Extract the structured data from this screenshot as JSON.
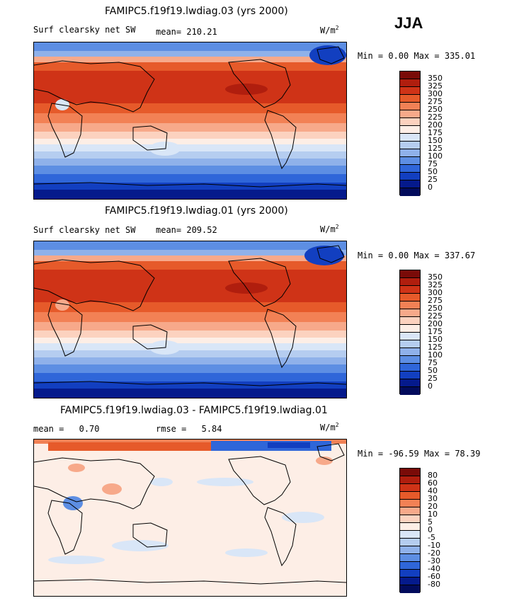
{
  "season": "JJA",
  "panels": [
    {
      "title": "FAMIPC5.f19f19.lwdiag.03 (yrs 2000)",
      "variable": "Surf clearsky net SW",
      "stat_label": "mean=",
      "stat_value": "210.21",
      "units": "W/m",
      "units_exp": "2",
      "min_label": "Min =",
      "min_value": "0.00",
      "max_label": "Max =",
      "max_value": "335.01",
      "levels": [
        "350",
        "325",
        "300",
        "275",
        "250",
        "225",
        "200",
        "175",
        "150",
        "125",
        "100",
        "75",
        "50",
        "25",
        "0"
      ]
    },
    {
      "title": "FAMIPC5.f19f19.lwdiag.01 (yrs 2000)",
      "variable": "Surf clearsky net SW",
      "stat_label": "mean=",
      "stat_value": "209.52",
      "units": "W/m",
      "units_exp": "2",
      "min_label": "Min =",
      "min_value": "0.00",
      "max_label": "Max =",
      "max_value": "337.67",
      "levels": [
        "350",
        "325",
        "300",
        "275",
        "250",
        "225",
        "200",
        "175",
        "150",
        "125",
        "100",
        "75",
        "50",
        "25",
        "0"
      ]
    },
    {
      "title": "FAMIPC5.f19f19.lwdiag.03 - FAMIPC5.f19f19.lwdiag.01",
      "mean_label": "mean =",
      "mean_value": "0.70",
      "rmse_label": "rmse =",
      "rmse_value": "5.84",
      "units": "W/m",
      "units_exp": "2",
      "min_label": "Min =",
      "min_value": "-96.59",
      "max_label": "Max =",
      "max_value": "78.39",
      "levels": [
        "80",
        "60",
        "40",
        "30",
        "20",
        "10",
        "5",
        "0",
        "-5",
        "-10",
        "-20",
        "-30",
        "-40",
        "-60",
        "-80"
      ]
    }
  ],
  "colors": {
    "abs_scale": [
      "#7a0b08",
      "#b01e0e",
      "#cf3317",
      "#e65a2a",
      "#f28155",
      "#f7a98a",
      "#fcd2bf",
      "#fdeee6",
      "#d9e6f7",
      "#b5cdf0",
      "#8fb1ea",
      "#5d8ee3",
      "#2f66d9",
      "#123fc0",
      "#051a8c",
      "#020b5c"
    ],
    "diff_scale": [
      "#7a0b08",
      "#b01e0e",
      "#cf3317",
      "#e65a2a",
      "#f28155",
      "#f7a98a",
      "#fcd2bf",
      "#fdeee6",
      "#d9e6f7",
      "#b5cdf0",
      "#8fb1ea",
      "#5d8ee3",
      "#2f66d9",
      "#123fc0",
      "#051a8c",
      "#020b5c"
    ]
  }
}
